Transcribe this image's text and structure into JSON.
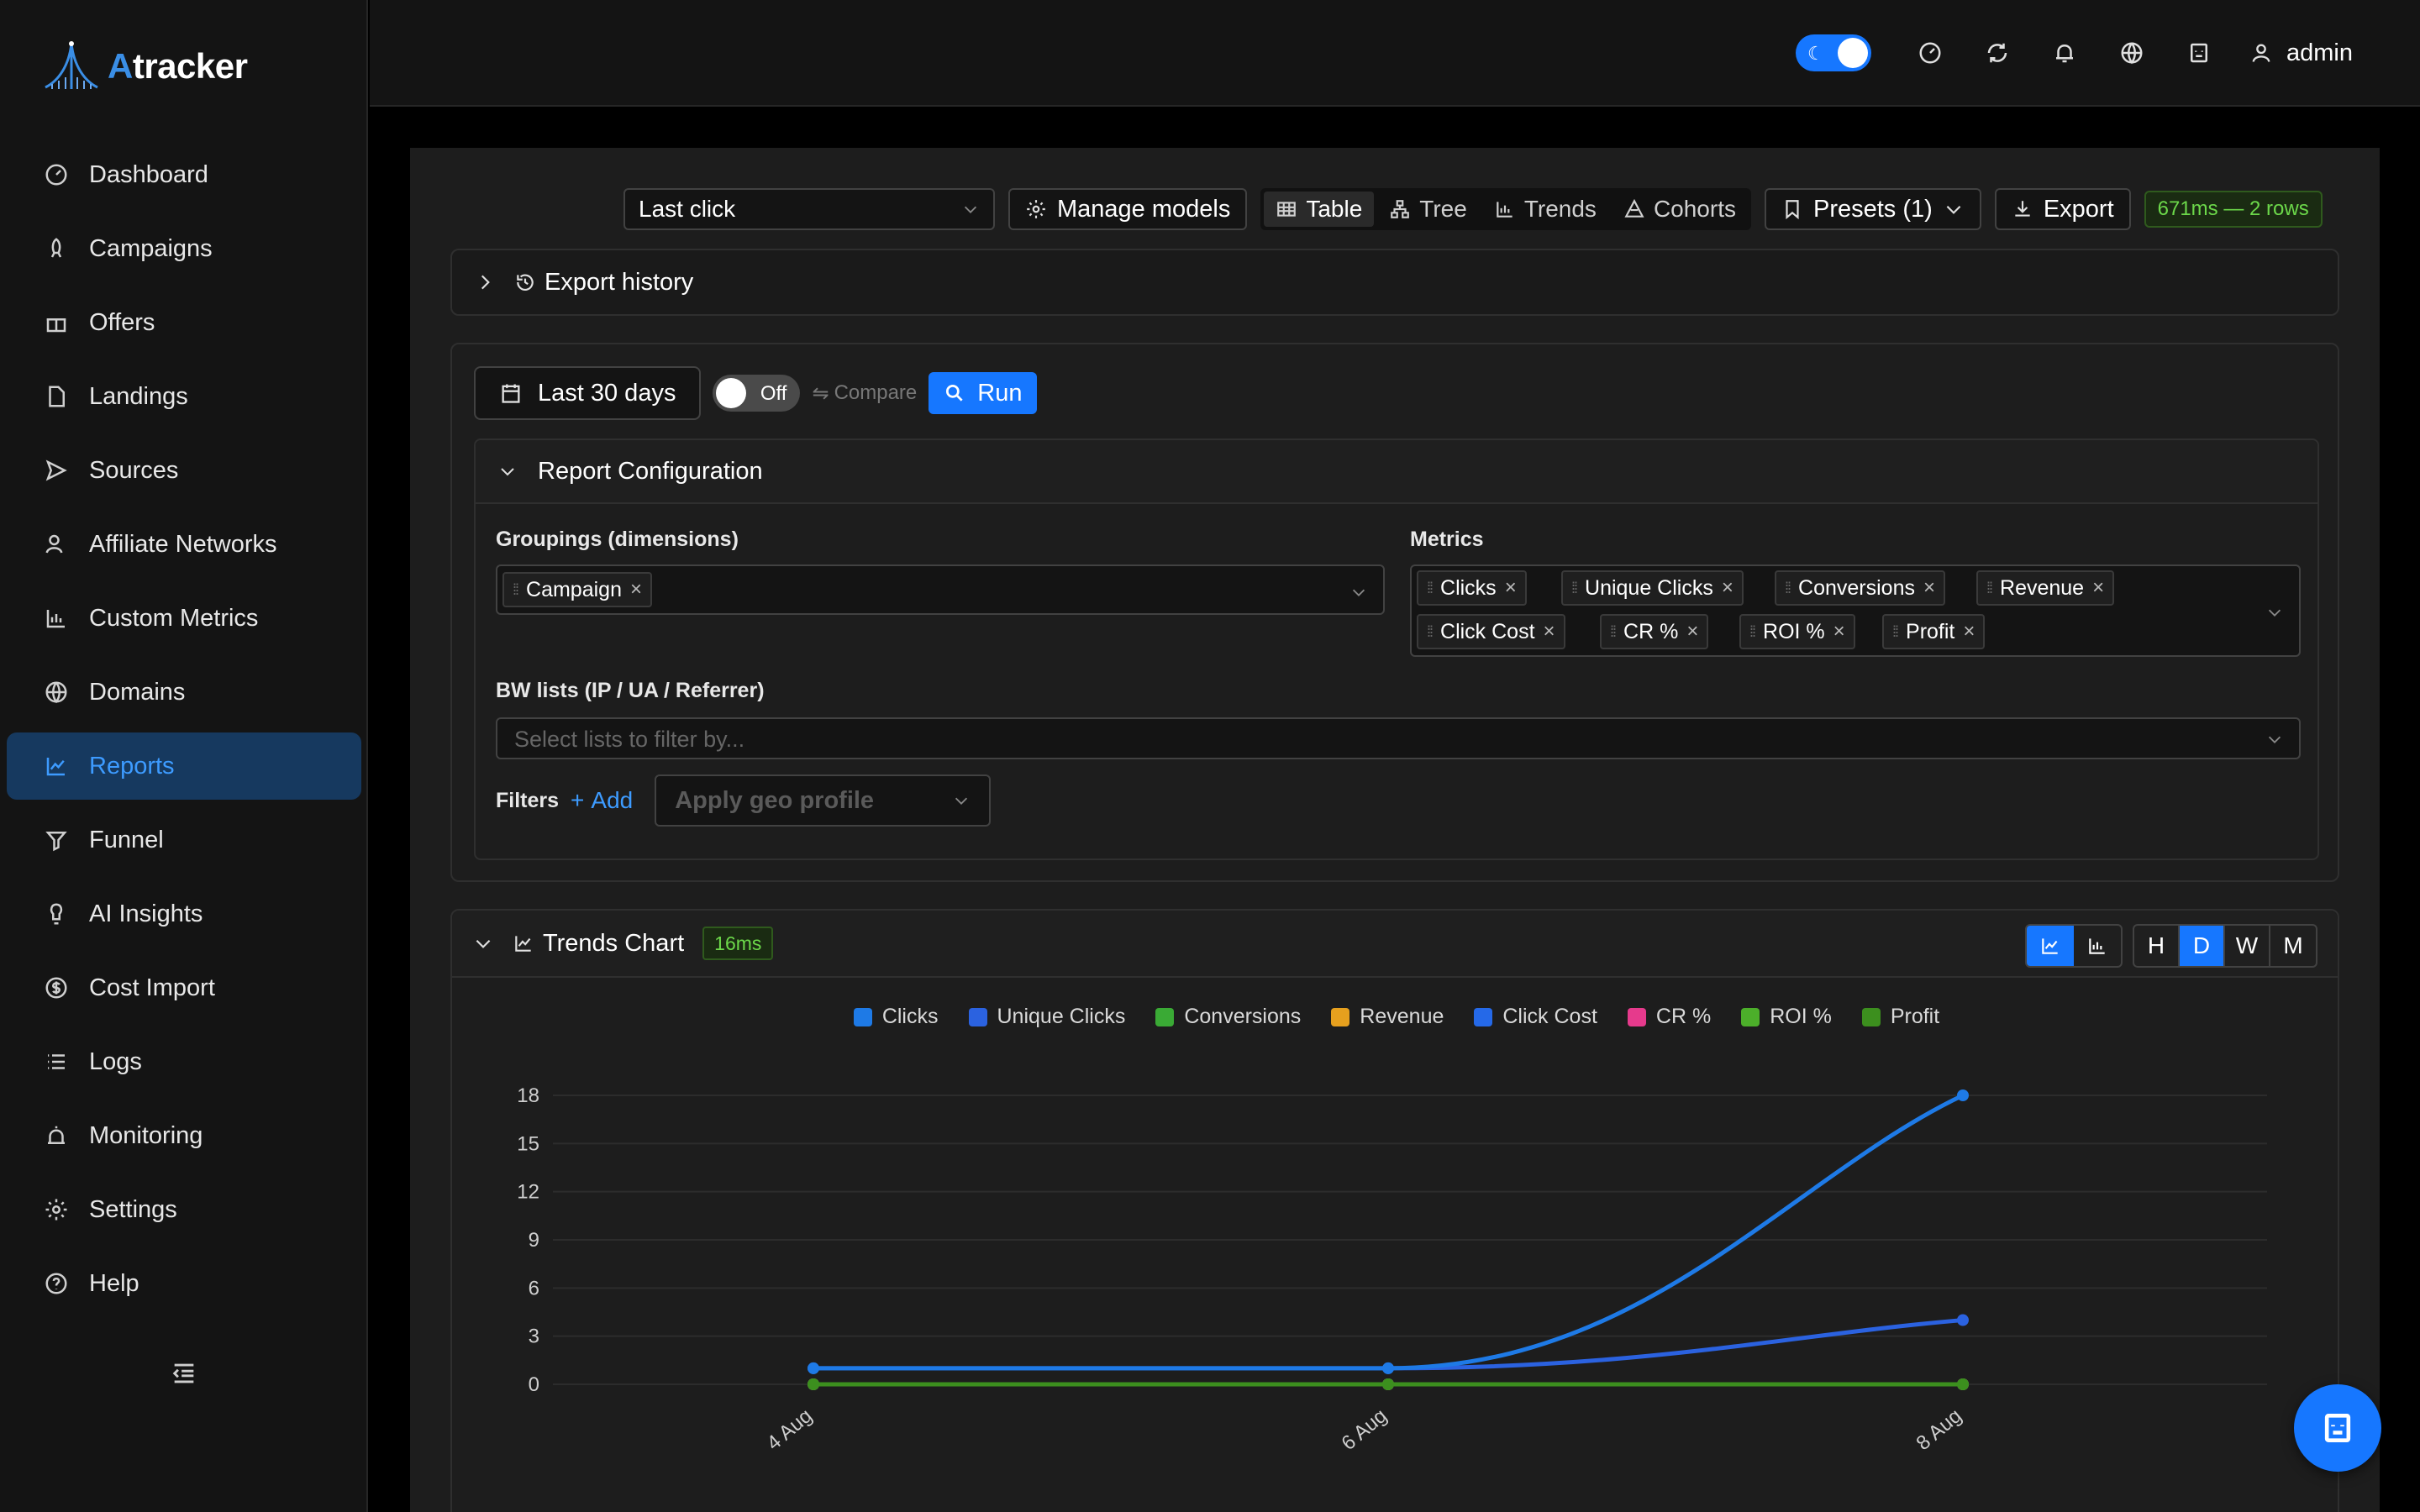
{
  "app": {
    "logo_a": "A",
    "logo_rest": "tracker"
  },
  "sidebar": {
    "items": [
      {
        "label": "Dashboard",
        "icon": "gauge-icon"
      },
      {
        "label": "Campaigns",
        "icon": "rocket-icon"
      },
      {
        "label": "Offers",
        "icon": "gift-icon"
      },
      {
        "label": "Landings",
        "icon": "file-icon"
      },
      {
        "label": "Sources",
        "icon": "send-icon"
      },
      {
        "label": "Affiliate Networks",
        "icon": "users-icon"
      },
      {
        "label": "Custom Metrics",
        "icon": "bar-chart-icon"
      },
      {
        "label": "Domains",
        "icon": "globe-icon"
      },
      {
        "label": "Reports",
        "icon": "line-chart-icon",
        "active": true
      },
      {
        "label": "Funnel",
        "icon": "funnel-icon"
      },
      {
        "label": "AI Insights",
        "icon": "bulb-icon"
      },
      {
        "label": "Cost Import",
        "icon": "dollar-icon"
      },
      {
        "label": "Logs",
        "icon": "list-icon"
      },
      {
        "label": "Monitoring",
        "icon": "alarm-icon"
      },
      {
        "label": "Settings",
        "icon": "gear-icon"
      },
      {
        "label": "Help",
        "icon": "help-icon"
      }
    ]
  },
  "header": {
    "user": "admin"
  },
  "toolbar": {
    "attribution": "Last click",
    "manage_models": "Manage models",
    "views": [
      "Table",
      "Tree",
      "Trends",
      "Cohorts"
    ],
    "active_view": "Table",
    "presets": "Presets (1)",
    "export": "Export",
    "timing": "671ms — 2 rows"
  },
  "export_history": {
    "label": "Export history"
  },
  "run": {
    "date_range": "Last 30 days",
    "compare_toggle": "Off",
    "compare_label": "Compare",
    "run_label": "Run"
  },
  "report_config": {
    "title": "Report Configuration",
    "groupings_label": "Groupings (dimensions)",
    "groupings": [
      "Campaign"
    ],
    "metrics_label": "Metrics",
    "metrics": [
      "Clicks",
      "Unique Clicks",
      "Conversions",
      "Revenue",
      "Click Cost",
      "CR %",
      "ROI %",
      "Profit"
    ],
    "bw_label": "BW lists (IP / UA / Referrer)",
    "bw_placeholder": "Select lists to filter by...",
    "filters_label": "Filters",
    "add_label": "Add",
    "geo_placeholder": "Apply geo profile"
  },
  "trends": {
    "title": "Trends Chart",
    "timing": "16ms",
    "granularity": [
      "H",
      "D",
      "W",
      "M"
    ],
    "active_granularity": "D"
  },
  "chart_data": {
    "type": "line",
    "x": [
      "4 Aug",
      "6 Aug",
      "8 Aug"
    ],
    "ylim": [
      0,
      18
    ],
    "yticks": [
      0,
      3,
      6,
      9,
      12,
      15,
      18
    ],
    "grid": true,
    "legend_position": "top-center",
    "series": [
      {
        "name": "Clicks",
        "color": "#1e7ae6",
        "values": [
          1,
          1,
          18
        ]
      },
      {
        "name": "Unique Clicks",
        "color": "#2b62e0",
        "values": [
          1,
          1,
          4
        ]
      },
      {
        "name": "Conversions",
        "color": "#3aaa35",
        "values": [
          0,
          0,
          0
        ]
      },
      {
        "name": "Revenue",
        "color": "#e6a01e",
        "values": [
          0,
          0,
          0
        ]
      },
      {
        "name": "Click Cost",
        "color": "#2569e8",
        "values": [
          0,
          0,
          0
        ]
      },
      {
        "name": "CR %",
        "color": "#e63a8c",
        "values": [
          0,
          0,
          0
        ]
      },
      {
        "name": "ROI %",
        "color": "#4caf2a",
        "values": [
          0,
          0,
          0
        ]
      },
      {
        "name": "Profit",
        "color": "#3c8f1e",
        "values": [
          0,
          0,
          0
        ]
      }
    ]
  }
}
